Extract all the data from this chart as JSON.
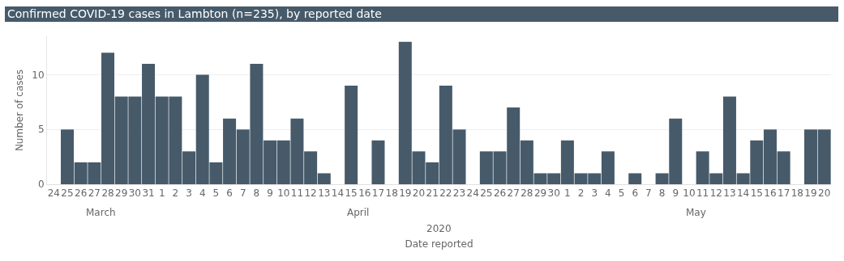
{
  "chart_data": {
    "type": "bar",
    "title": "Confirmed COVID-19 cases in Lambton (n=235), by reported date",
    "xlabel": "Date reported",
    "annotations": [
      "March",
      "April",
      "May",
      "2020"
    ],
    "ylabel": "Number of cases",
    "x": [
      "2020-03-24",
      "2020-03-25",
      "2020-03-26",
      "2020-03-27",
      "2020-03-28",
      "2020-03-29",
      "2020-03-30",
      "2020-03-31",
      "2020-04-01",
      "2020-04-02",
      "2020-04-03",
      "2020-04-04",
      "2020-04-05",
      "2020-04-06",
      "2020-04-07",
      "2020-04-08",
      "2020-04-09",
      "2020-04-10",
      "2020-04-11",
      "2020-04-12",
      "2020-04-13",
      "2020-04-14",
      "2020-04-15",
      "2020-04-16",
      "2020-04-17",
      "2020-04-18",
      "2020-04-19",
      "2020-04-20",
      "2020-04-21",
      "2020-04-22",
      "2020-04-23",
      "2020-04-24",
      "2020-04-25",
      "2020-04-26",
      "2020-04-27",
      "2020-04-28",
      "2020-04-29",
      "2020-04-30",
      "2020-05-01",
      "2020-05-02",
      "2020-05-03",
      "2020-05-04",
      "2020-05-05",
      "2020-05-06",
      "2020-05-07",
      "2020-05-08",
      "2020-05-09",
      "2020-05-10",
      "2020-05-11",
      "2020-05-12",
      "2020-05-13",
      "2020-05-14",
      "2020-05-15",
      "2020-05-16",
      "2020-05-17",
      "2020-05-18",
      "2020-05-19",
      "2020-05-20"
    ],
    "values": [
      0,
      5,
      2,
      2,
      12,
      8,
      8,
      11,
      8,
      8,
      3,
      10,
      2,
      6,
      5,
      11,
      4,
      4,
      6,
      3,
      1,
      0,
      9,
      0,
      4,
      0,
      13,
      3,
      2,
      9,
      5,
      0,
      3,
      3,
      7,
      4,
      1,
      1,
      4,
      1,
      1,
      3,
      0,
      1,
      0,
      1,
      6,
      0,
      3,
      1,
      8,
      1,
      4,
      5,
      3,
      0,
      5,
      5
    ],
    "color": "#465a6a",
    "xlim": [
      "2020-03-23T12:00",
      "2020-05-20T12:00"
    ],
    "xticks": [
      {
        "value": "2020-03-24",
        "label": "24"
      },
      {
        "value": "2020-03-25",
        "label": "25"
      },
      {
        "value": "2020-03-26",
        "label": "26"
      },
      {
        "value": "2020-03-27",
        "label": "27"
      },
      {
        "value": "2020-03-28",
        "label": "28"
      },
      {
        "value": "2020-03-29",
        "label": "29"
      },
      {
        "value": "2020-03-30",
        "label": "30"
      },
      {
        "value": "2020-03-31",
        "label": "31"
      },
      {
        "value": "2020-04-01",
        "label": "1"
      },
      {
        "value": "2020-04-02",
        "label": "2"
      },
      {
        "value": "2020-04-03",
        "label": "3"
      },
      {
        "value": "2020-04-04",
        "label": "4"
      },
      {
        "value": "2020-04-05",
        "label": "5"
      },
      {
        "value": "2020-04-06",
        "label": "6"
      },
      {
        "value": "2020-04-07",
        "label": "7"
      },
      {
        "value": "2020-04-08",
        "label": "8"
      },
      {
        "value": "2020-04-09",
        "label": "9"
      },
      {
        "value": "2020-04-10",
        "label": "10"
      },
      {
        "value": "2020-04-11",
        "label": "11"
      },
      {
        "value": "2020-04-12",
        "label": "12"
      },
      {
        "value": "2020-04-13",
        "label": "13"
      },
      {
        "value": "2020-04-14",
        "label": "14"
      },
      {
        "value": "2020-04-15",
        "label": "15"
      },
      {
        "value": "2020-04-16",
        "label": "16"
      },
      {
        "value": "2020-04-17",
        "label": "17"
      },
      {
        "value": "2020-04-18",
        "label": "18"
      },
      {
        "value": "2020-04-19",
        "label": "19"
      },
      {
        "value": "2020-04-20",
        "label": "20"
      },
      {
        "value": "2020-04-21",
        "label": "21"
      },
      {
        "value": "2020-04-22",
        "label": "22"
      },
      {
        "value": "2020-04-23",
        "label": "23"
      },
      {
        "value": "2020-04-24",
        "label": "24"
      },
      {
        "value": "2020-04-25",
        "label": "25"
      },
      {
        "value": "2020-04-26",
        "label": "26"
      },
      {
        "value": "2020-04-27",
        "label": "27"
      },
      {
        "value": "2020-04-28",
        "label": "28"
      },
      {
        "value": "2020-04-29",
        "label": "29"
      },
      {
        "value": "2020-04-30",
        "label": "30"
      },
      {
        "value": "2020-05-01",
        "label": "1"
      },
      {
        "value": "2020-05-02",
        "label": "2"
      },
      {
        "value": "2020-05-03",
        "label": "3"
      },
      {
        "value": "2020-05-04",
        "label": "4"
      },
      {
        "value": "2020-05-05",
        "label": "5"
      },
      {
        "value": "2020-05-06",
        "label": "6"
      },
      {
        "value": "2020-05-07",
        "label": "7"
      },
      {
        "value": "2020-05-08",
        "label": "8"
      },
      {
        "value": "2020-05-09",
        "label": "9"
      },
      {
        "value": "2020-05-10",
        "label": "10"
      },
      {
        "value": "2020-05-11",
        "label": "11"
      },
      {
        "value": "2020-05-12",
        "label": "12"
      },
      {
        "value": "2020-05-13",
        "label": "13"
      },
      {
        "value": "2020-05-14",
        "label": "14"
      },
      {
        "value": "2020-05-15",
        "label": "15"
      },
      {
        "value": "2020-05-16",
        "label": "16"
      },
      {
        "value": "2020-05-17",
        "label": "17"
      },
      {
        "value": "2020-05-18",
        "label": "18"
      },
      {
        "value": "2020-05-19",
        "label": "19"
      },
      {
        "value": "2020-05-20",
        "label": "20"
      }
    ],
    "ylim": [
      0,
      13.5
    ],
    "yticks": [
      0,
      5,
      10
    ],
    "grid": "y"
  }
}
